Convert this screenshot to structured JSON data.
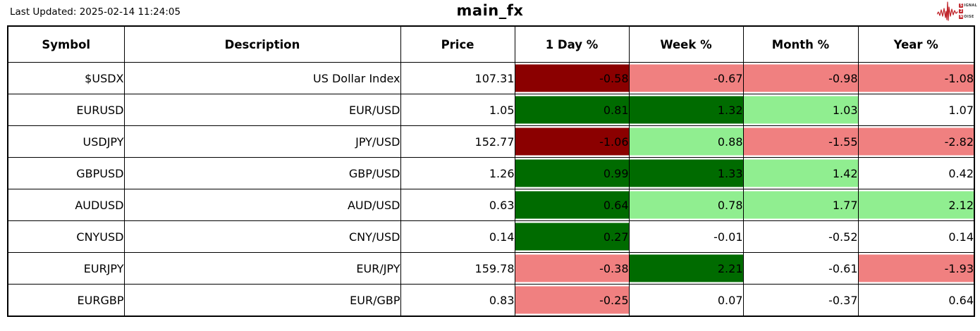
{
  "header": {
    "last_updated": "Last Updated: 2025-02-14 11:24:05",
    "title": "main_fx",
    "logo": {
      "line1_initial": "S",
      "line1_rest": "IGNAL",
      "line2": "2",
      "line3_initial": "N",
      "line3_rest": "OISE",
      "accent_color": "#c1272d"
    }
  },
  "palette": {
    "dark_red": "#8b0000",
    "light_red": "#f08080",
    "dark_green": "#006b00",
    "light_green": "#90ee90",
    "none": "#ffffff"
  },
  "table": {
    "columns": [
      "Symbol",
      "Description",
      "Price",
      "1 Day %",
      "Week %",
      "Month %",
      "Year %"
    ],
    "rows": [
      {
        "symbol": "$USDX",
        "description": "US Dollar Index",
        "price": "107.31",
        "day": {
          "value": "-0.58",
          "color": "dark_red"
        },
        "week": {
          "value": "-0.67",
          "color": "light_red"
        },
        "month": {
          "value": "-0.98",
          "color": "light_red"
        },
        "year": {
          "value": "-1.08",
          "color": "light_red"
        }
      },
      {
        "symbol": "EURUSD",
        "description": "EUR/USD",
        "price": "1.05",
        "day": {
          "value": "0.81",
          "color": "dark_green"
        },
        "week": {
          "value": "1.32",
          "color": "dark_green"
        },
        "month": {
          "value": "1.03",
          "color": "light_green"
        },
        "year": {
          "value": "1.07",
          "color": "none"
        }
      },
      {
        "symbol": "USDJPY",
        "description": "JPY/USD",
        "price": "152.77",
        "day": {
          "value": "-1.06",
          "color": "dark_red"
        },
        "week": {
          "value": "0.88",
          "color": "light_green"
        },
        "month": {
          "value": "-1.55",
          "color": "light_red"
        },
        "year": {
          "value": "-2.82",
          "color": "light_red"
        }
      },
      {
        "symbol": "GBPUSD",
        "description": "GBP/USD",
        "price": "1.26",
        "day": {
          "value": "0.99",
          "color": "dark_green"
        },
        "week": {
          "value": "1.33",
          "color": "dark_green"
        },
        "month": {
          "value": "1.42",
          "color": "light_green"
        },
        "year": {
          "value": "0.42",
          "color": "none"
        }
      },
      {
        "symbol": "AUDUSD",
        "description": "AUD/USD",
        "price": "0.63",
        "day": {
          "value": "0.64",
          "color": "dark_green"
        },
        "week": {
          "value": "0.78",
          "color": "light_green"
        },
        "month": {
          "value": "1.77",
          "color": "light_green"
        },
        "year": {
          "value": "2.12",
          "color": "light_green"
        }
      },
      {
        "symbol": "CNYUSD",
        "description": "CNY/USD",
        "price": "0.14",
        "day": {
          "value": "0.27",
          "color": "dark_green"
        },
        "week": {
          "value": "-0.01",
          "color": "none"
        },
        "month": {
          "value": "-0.52",
          "color": "none"
        },
        "year": {
          "value": "0.14",
          "color": "none"
        }
      },
      {
        "symbol": "EURJPY",
        "description": "EUR/JPY",
        "price": "159.78",
        "day": {
          "value": "-0.38",
          "color": "light_red"
        },
        "week": {
          "value": "2.21",
          "color": "dark_green"
        },
        "month": {
          "value": "-0.61",
          "color": "none"
        },
        "year": {
          "value": "-1.93",
          "color": "light_red"
        }
      },
      {
        "symbol": "EURGBP",
        "description": "EUR/GBP",
        "price": "0.83",
        "day": {
          "value": "-0.25",
          "color": "light_red"
        },
        "week": {
          "value": "0.07",
          "color": "none"
        },
        "month": {
          "value": "-0.37",
          "color": "none"
        },
        "year": {
          "value": "0.64",
          "color": "none"
        }
      }
    ]
  }
}
